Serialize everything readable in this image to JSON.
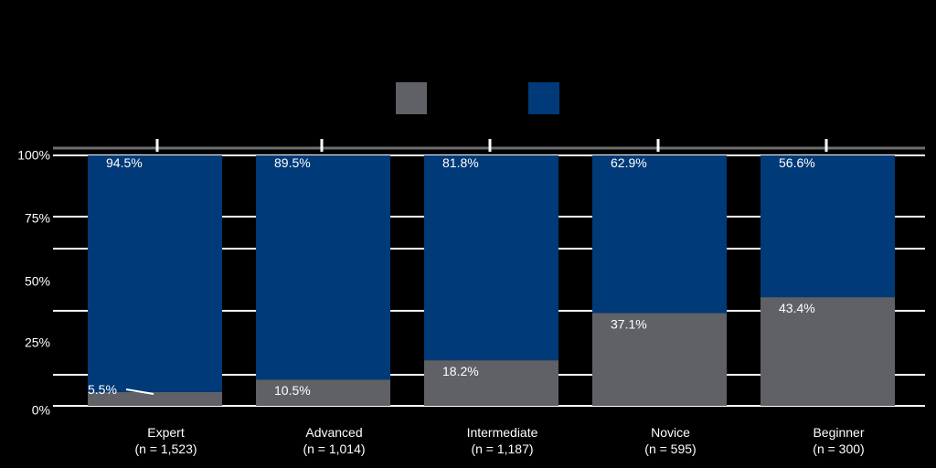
{
  "chart_data": {
    "type": "bar",
    "stacked": true,
    "percent": true,
    "categories": [
      "Expert\n(n = 1,523)",
      "Advanced\n(n = 1,014)",
      "Intermediate\n(n = 1,187)",
      "Novice\n(n = 595)",
      "Beginner\n(n = 300)"
    ],
    "series": [
      {
        "name": "",
        "color": "#5f6166",
        "values": [
          5.5,
          10.5,
          18.2,
          37.1,
          43.4
        ]
      },
      {
        "name": "",
        "color": "#003a78",
        "values": [
          94.5,
          89.5,
          81.8,
          62.9,
          56.6
        ]
      }
    ],
    "data_labels": {
      "bottom": [
        "5.5%",
        "10.5%",
        "18.2%",
        "37.1%",
        "43.4%"
      ],
      "top": [
        "94.5%",
        "89.5%",
        "81.8%",
        "62.9%",
        "56.6%"
      ]
    },
    "y_ticks": [
      "0%",
      "25%",
      "50%",
      "75%",
      "100%"
    ],
    "ylim": [
      0,
      100
    ],
    "grid": true,
    "legend": "top-center",
    "background": "#000000",
    "label_color": "#ffffff"
  }
}
